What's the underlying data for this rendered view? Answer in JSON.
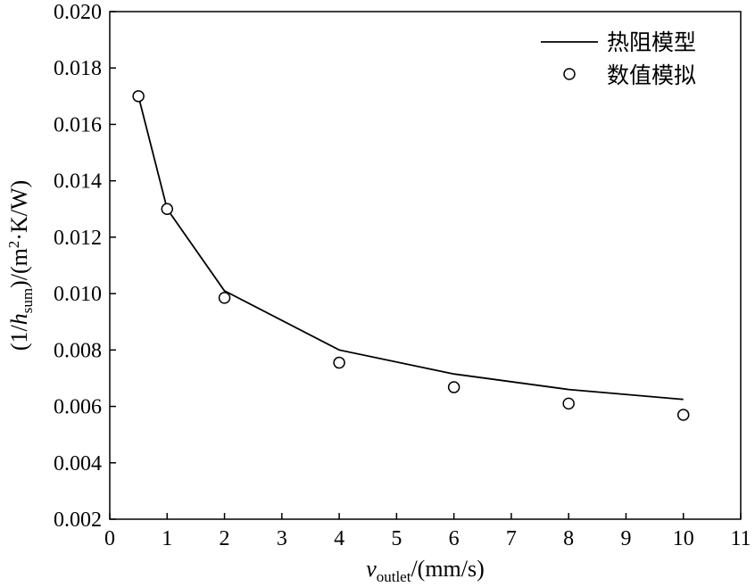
{
  "chart_data": {
    "type": "line",
    "xlim": [
      0,
      11
    ],
    "ylim": [
      0.002,
      0.02
    ],
    "x_ticks": [
      "0",
      "1",
      "2",
      "3",
      "4",
      "5",
      "6",
      "7",
      "8",
      "9",
      "10",
      "11"
    ],
    "y_ticks": [
      "0.002",
      "0.004",
      "0.006",
      "0.008",
      "0.010",
      "0.012",
      "0.014",
      "0.016",
      "0.018",
      "0.020"
    ],
    "xlabel": {
      "main": "v",
      "sub": "outlet",
      "rest": "/(mm/s)"
    },
    "ylabel": {
      "pre": "(1/",
      "h": "h",
      "sub": "sum",
      "mid": ")/(m",
      "sup": "2",
      "post": "·K/W)"
    },
    "grid": false,
    "legend_position": "top-right",
    "series": [
      {
        "name": "热阻模型",
        "style": "line",
        "x": [
          0.5,
          1,
          2,
          4,
          6,
          8,
          10
        ],
        "y": [
          0.017,
          0.013,
          0.0101,
          0.008,
          0.00715,
          0.0066,
          0.00625
        ]
      },
      {
        "name": "数值模拟",
        "style": "marker",
        "x": [
          0.5,
          1,
          2,
          4,
          6,
          8,
          10
        ],
        "y": [
          0.017,
          0.013,
          0.00985,
          0.00755,
          0.00668,
          0.0061,
          0.0057
        ]
      }
    ],
    "colors": {
      "line": "#000000",
      "marker_fill": "#ffffff",
      "marker_stroke": "#000000"
    }
  }
}
